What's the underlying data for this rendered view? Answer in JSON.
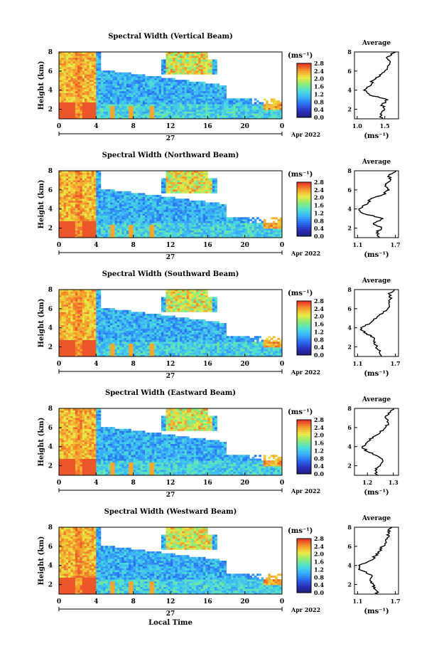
{
  "figure": {
    "xlabel": "Local Time",
    "date_label": "Apr 2022",
    "day_label": "27",
    "x_ticks": [
      "0",
      "4",
      "8",
      "12",
      "16",
      "20",
      "0"
    ],
    "y_ticks": [
      "2",
      "4",
      "6",
      "8"
    ],
    "ylabel": "Height (km)",
    "colorbar_unit": "(ms⁻¹)",
    "colorbar_ticks": [
      "0.0",
      "0.4",
      "0.8",
      "1.2",
      "1.6",
      "2.0",
      "2.4",
      "2.8"
    ],
    "avg_title": "Average",
    "avg_xlabel": "(ms⁻¹)",
    "colors": {
      "low": "#2b2b9e",
      "mid_low": "#3fa2ee",
      "mid": "#5de0c0",
      "mid_high": "#e8e84a",
      "high": "#f2a02c",
      "max": "#e8302a"
    }
  },
  "chart_data": [
    {
      "type": "heatmap",
      "title": "Spectral Width (Vertical Beam)",
      "xlabel": "",
      "ylabel": "Height (km)",
      "xlim": [
        0,
        24
      ],
      "ylim": [
        1,
        8
      ],
      "colorbar": {
        "min": 0.0,
        "max": 2.8
      },
      "average": {
        "type": "line",
        "title": "Average",
        "xlabel": "(ms⁻¹)",
        "xticks": [
          "1.0",
          "1.5"
        ],
        "xlim": [
          0.95,
          1.75
        ],
        "heights": [
          1.0,
          1.5,
          2.0,
          2.5,
          3.0,
          3.5,
          4.0,
          4.5,
          5.0,
          5.5,
          6.0,
          6.5,
          7.0,
          7.5,
          8.0
        ],
        "values": [
          1.45,
          1.42,
          1.5,
          1.45,
          1.55,
          1.22,
          1.12,
          1.25,
          1.28,
          1.42,
          1.5,
          1.55,
          1.6,
          1.55,
          1.7
        ]
      }
    },
    {
      "type": "heatmap",
      "title": "Spectral Width (Northward Beam)",
      "xlabel": "",
      "ylabel": "Height (km)",
      "xlim": [
        0,
        24
      ],
      "ylim": [
        1,
        8
      ],
      "colorbar": {
        "min": 0.0,
        "max": 2.8
      },
      "average": {
        "type": "line",
        "title": "Average",
        "xlabel": "(ms⁻¹)",
        "xticks": [
          "1.1",
          "1.7"
        ],
        "xlim": [
          1.05,
          1.75
        ],
        "heights": [
          1.0,
          1.5,
          2.0,
          2.5,
          3.0,
          3.5,
          4.0,
          4.5,
          5.0,
          5.5,
          6.0,
          6.5,
          7.0,
          7.5,
          8.0
        ],
        "values": [
          1.45,
          1.4,
          1.48,
          1.35,
          1.5,
          1.2,
          1.12,
          1.25,
          1.3,
          1.5,
          1.6,
          1.55,
          1.62,
          1.6,
          1.7
        ]
      }
    },
    {
      "type": "heatmap",
      "title": "Spectral Width (Southward Beam)",
      "xlabel": "",
      "ylabel": "Height (km)",
      "xlim": [
        0,
        24
      ],
      "ylim": [
        1,
        8
      ],
      "colorbar": {
        "min": 0.0,
        "max": 2.8
      },
      "average": {
        "type": "line",
        "title": "Average",
        "xlabel": "(ms⁻¹)",
        "xticks": [
          "1.1",
          "1.7"
        ],
        "xlim": [
          1.05,
          1.75
        ],
        "heights": [
          1.0,
          1.5,
          2.0,
          2.5,
          3.0,
          3.5,
          4.0,
          4.5,
          5.0,
          5.5,
          6.0,
          6.5,
          7.0,
          7.5,
          8.0
        ],
        "values": [
          1.48,
          1.45,
          1.4,
          1.38,
          1.35,
          1.2,
          1.15,
          1.3,
          1.4,
          1.5,
          1.58,
          1.6,
          1.62,
          1.6,
          1.68
        ]
      }
    },
    {
      "type": "heatmap",
      "title": "Spectral Width (Eastward Beam)",
      "xlabel": "",
      "ylabel": "Height (km)",
      "xlim": [
        0,
        24
      ],
      "ylim": [
        1,
        8
      ],
      "colorbar": {
        "min": 0.0,
        "max": 2.8
      },
      "average": {
        "type": "line",
        "title": "Average",
        "xlabel": "(ms⁻¹)",
        "xticks": [
          "1.2",
          "1.3"
        ],
        "xlim": [
          1.15,
          1.32
        ],
        "heights": [
          1.0,
          1.5,
          2.0,
          2.5,
          3.0,
          3.5,
          4.0,
          4.5,
          5.0,
          5.5,
          6.0,
          6.5,
          7.0,
          7.5,
          8.0
        ],
        "values": [
          1.24,
          1.23,
          1.25,
          1.26,
          1.24,
          1.2,
          1.18,
          1.2,
          1.22,
          1.25,
          1.27,
          1.28,
          1.27,
          1.28,
          1.3
        ]
      }
    },
    {
      "type": "heatmap",
      "title": "Spectral Width (Westward Beam)",
      "xlabel": "Local Time",
      "ylabel": "Height (km)",
      "xlim": [
        0,
        24
      ],
      "ylim": [
        1,
        8
      ],
      "colorbar": {
        "min": 0.0,
        "max": 2.8
      },
      "average": {
        "type": "line",
        "title": "Average",
        "xlabel": "(ms⁻¹)",
        "xticks": [
          "1.1",
          "1.7"
        ],
        "xlim": [
          1.05,
          1.75
        ],
        "heights": [
          1.0,
          1.5,
          2.0,
          2.5,
          3.0,
          3.5,
          4.0,
          4.5,
          5.0,
          5.5,
          6.0,
          6.5,
          7.0,
          7.5,
          8.0
        ],
        "values": [
          1.42,
          1.38,
          1.35,
          1.3,
          1.32,
          1.15,
          1.12,
          1.3,
          1.38,
          1.45,
          1.5,
          1.55,
          1.6,
          1.58,
          1.65
        ]
      }
    }
  ]
}
